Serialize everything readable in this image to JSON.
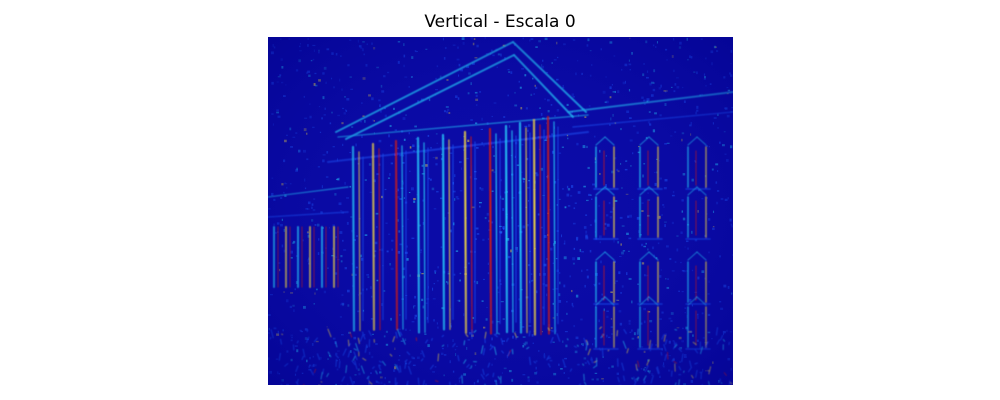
{
  "figure": {
    "title": "Vertical - Escala 0"
  },
  "image": {
    "colormap": "jet",
    "colors": {
      "background": "#0a0aa8",
      "dark": "#00008f",
      "low": "#1f5cff",
      "mid": "#27d8ff",
      "high": "#ffe23a",
      "peak": "#d81c0c"
    }
  }
}
